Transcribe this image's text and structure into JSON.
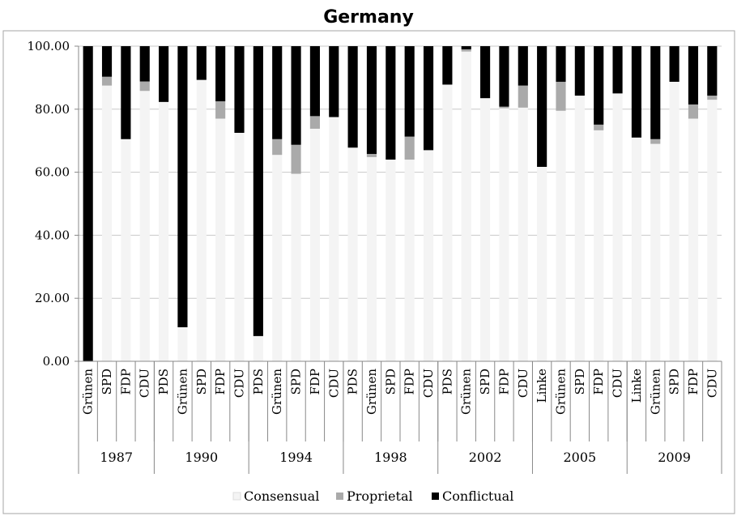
{
  "chart_data": {
    "type": "bar",
    "stacked": true,
    "title": "Germany",
    "xlabel": "",
    "ylabel": "",
    "ylim": [
      0,
      100
    ],
    "yticks": [
      "0.00",
      "20.00",
      "40.00",
      "60.00",
      "80.00",
      "100.00"
    ],
    "grid": true,
    "legend_position": "bottom",
    "groups": [
      {
        "label": "1987",
        "categories": [
          "Grünen",
          "SPD",
          "FDP",
          "CDU"
        ]
      },
      {
        "label": "1990",
        "categories": [
          "PDS",
          "Grünen",
          "SPD",
          "FDP",
          "CDU"
        ]
      },
      {
        "label": "1994",
        "categories": [
          "PDS",
          "Grünen",
          "SPD",
          "FDP",
          "CDU"
        ]
      },
      {
        "label": "1998",
        "categories": [
          "PDS",
          "Grünen",
          "SPD",
          "FDP",
          "CDU"
        ]
      },
      {
        "label": "2002",
        "categories": [
          "PDS",
          "Grünen",
          "SPD",
          "FDP",
          "CDU"
        ]
      },
      {
        "label": "2005",
        "categories": [
          "Linke",
          "Grünen",
          "SPD",
          "FDP",
          "CDU"
        ]
      },
      {
        "label": "2009",
        "categories": [
          "Linke",
          "Grünen",
          "SPD",
          "FDP",
          "CDU"
        ]
      }
    ],
    "series": [
      {
        "name": "Consensual",
        "color": "#f4f4f4",
        "values": [
          0,
          87.5,
          70.5,
          85.8,
          82.3,
          10.8,
          89.3,
          77.0,
          72.5,
          8.0,
          65.5,
          59.5,
          73.8,
          77.5,
          67.8,
          64.8,
          64.0,
          64.0,
          67.0,
          87.8,
          98.3,
          83.5,
          80.3,
          80.5,
          61.7,
          79.5,
          84.3,
          73.3,
          85.0,
          71.0,
          69.0,
          88.7,
          77.0,
          83.0
        ]
      },
      {
        "name": "Proprietal",
        "color": "#aaaaaa",
        "values": [
          0,
          2.8,
          0,
          3.0,
          0,
          0,
          0,
          5.5,
          0,
          0,
          5.0,
          9.2,
          4.0,
          0,
          0,
          1.0,
          0,
          7.3,
          0,
          0,
          0.7,
          0,
          0.5,
          7.0,
          0,
          9.2,
          0,
          1.8,
          0,
          0,
          1.5,
          0,
          4.5,
          1.3
        ]
      },
      {
        "name": "Conflictual",
        "color": "#000000",
        "values": [
          100,
          9.7,
          29.5,
          11.2,
          17.7,
          89.2,
          10.7,
          17.5,
          27.5,
          92.0,
          29.5,
          31.3,
          22.2,
          22.5,
          32.2,
          34.2,
          36.0,
          28.7,
          33.0,
          12.2,
          1.0,
          16.5,
          19.2,
          12.5,
          38.3,
          11.3,
          15.7,
          24.9,
          15.0,
          29.0,
          29.5,
          11.3,
          18.5,
          15.7
        ]
      }
    ]
  }
}
